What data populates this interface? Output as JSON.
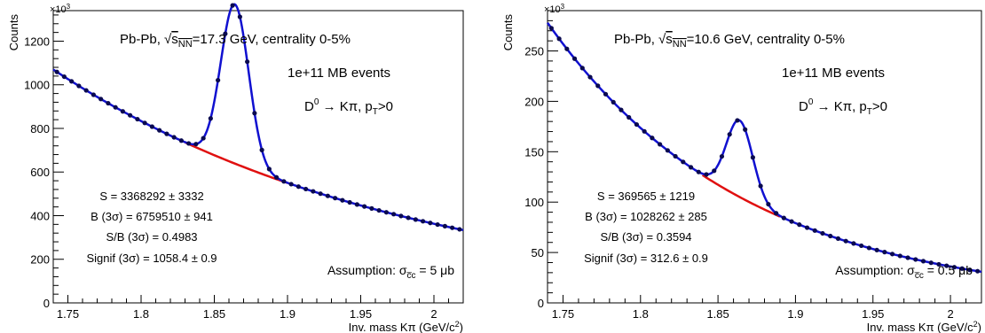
{
  "chart_data": [
    {
      "type": "scatter",
      "ylabel": "Counts",
      "xlabel": "Inv. mass Kπ (GeV/c",
      "xlabel_sup": "2",
      "multiplier": "×10",
      "multiplier_exp": "3",
      "xlim": [
        1.74,
        2.02
      ],
      "ylim": [
        0,
        1340
      ],
      "x_ticks": [
        1.75,
        1.8,
        1.85,
        1.9,
        1.95,
        2.0
      ],
      "x_tick_labels": [
        "1.75",
        "1.8",
        "1.85",
        "1.9",
        "1.95",
        "2"
      ],
      "y_ticks": [
        0,
        200,
        400,
        600,
        800,
        1000,
        1200
      ],
      "y_tick_labels": [
        "0",
        "200",
        "400",
        "600",
        "800",
        "1000",
        "1200"
      ],
      "background": {
        "a": 1070,
        "b": 4.16,
        "x0": 1.74
      },
      "peak": {
        "amplitude": 730,
        "mean": 1.864,
        "sigma": 0.0095
      },
      "background_line_range": [
        1.83,
        1.9
      ],
      "texts": {
        "system": "Pb-Pb, ",
        "sqrt_s": "s",
        "sqrt_sub": "NN",
        "energy": "=17.3 GeV, centrality 0-5%",
        "events": "1e+11 MB events",
        "decay_d": "D",
        "decay_d_sup": "0",
        "decay_arrow": " → Kπ, p",
        "decay_pt_sub": "T",
        "decay_tail": ">0",
        "signal": "S = 3368292 ± 3332",
        "bkg": "B (3σ) = 6759510 ± 941",
        "sb": "S/B (3σ) = 0.4983",
        "signif": "Signif (3σ) = 1058.4 ± 0.9",
        "assumption": "Assumption: σ",
        "assumption_sub": "c̅c",
        "assumption_tail": " = 5 μb"
      }
    },
    {
      "type": "scatter",
      "ylabel": "Counts",
      "xlabel": "Inv. mass Kπ (GeV/c",
      "xlabel_sup": "2",
      "multiplier": "×10",
      "multiplier_exp": "3",
      "xlim": [
        1.74,
        2.02
      ],
      "ylim": [
        0,
        290
      ],
      "x_ticks": [
        1.75,
        1.8,
        1.85,
        1.9,
        1.95,
        2.0
      ],
      "x_tick_labels": [
        "1.75",
        "1.8",
        "1.85",
        "1.9",
        "1.95",
        "2"
      ],
      "y_ticks": [
        0,
        50,
        100,
        150,
        200,
        250
      ],
      "y_tick_labels": [
        "0",
        "50",
        "100",
        "150",
        "200",
        "250"
      ],
      "background": {
        "a": 278,
        "b": 7.85,
        "x0": 1.74
      },
      "peak": {
        "amplitude": 76,
        "mean": 1.864,
        "sigma": 0.0085
      },
      "background_line_range": [
        1.84,
        1.89
      ],
      "texts": {
        "system": "Pb-Pb, ",
        "sqrt_s": "s",
        "sqrt_sub": "NN",
        "energy": "=10.6 GeV, centrality 0-5%",
        "events": "1e+11 MB events",
        "decay_d": "D",
        "decay_d_sup": "0",
        "decay_arrow": " → Kπ, p",
        "decay_pt_sub": "T",
        "decay_tail": ">0",
        "signal": "S = 369565 ± 1219",
        "bkg": "B (3σ) = 1028262 ± 285",
        "sb": "S/B (3σ) = 0.3594",
        "signif": "Signif (3σ) = 312.6 ± 0.9",
        "assumption": "Assumption: σ",
        "assumption_sub": "c̅c",
        "assumption_tail": " = 0.5 μb"
      }
    }
  ],
  "colors": {
    "fit": "#1010d0",
    "background_fit": "#e01010",
    "points": "#0a0a50",
    "frame": "#000000"
  }
}
